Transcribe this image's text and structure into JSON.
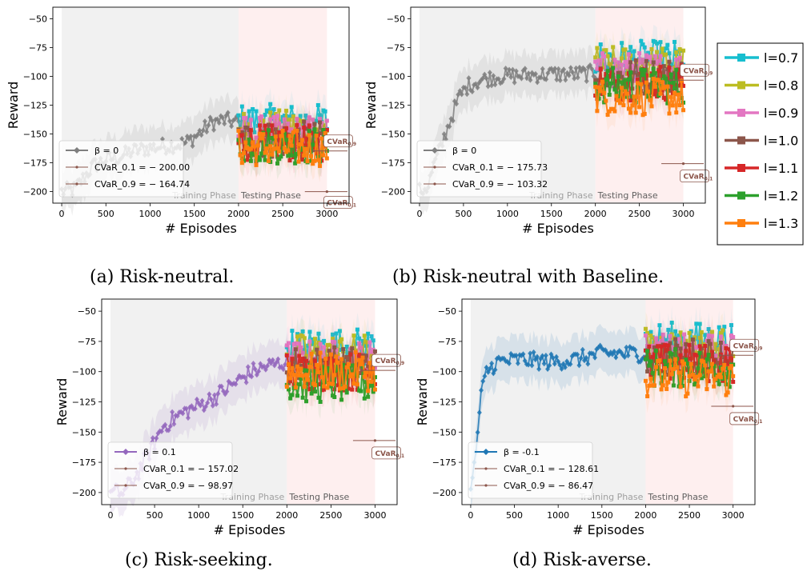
{
  "captions": {
    "a": "(a) Risk-neutral.",
    "b": "(b) Risk-neutral with Baseline.",
    "c": "(c) Risk-seeking.",
    "d": "(d) Risk-averse."
  },
  "legend": {
    "entries": [
      {
        "label": "l=0.7",
        "color": "#17becf"
      },
      {
        "label": "l=0.8",
        "color": "#bcbd22"
      },
      {
        "label": "l=0.9",
        "color": "#e377c2"
      },
      {
        "label": "l=1.0",
        "color": "#8c564b"
      },
      {
        "label": "l=1.1",
        "color": "#d62728"
      },
      {
        "label": "l=1.2",
        "color": "#2ca02c"
      },
      {
        "label": "l=1.3",
        "color": "#ff7f0e"
      }
    ]
  },
  "chart_data": [
    {
      "type": "line",
      "panel": "a",
      "xlabel": "# Episodes",
      "ylabel": "Reward",
      "xlim": [
        -100,
        3250
      ],
      "ylim": [
        -210,
        -40
      ],
      "xticks": [
        0,
        500,
        1000,
        1500,
        2000,
        2500,
        3000
      ],
      "yticks": [
        -50,
        -75,
        -100,
        -125,
        -150,
        -175,
        -200
      ],
      "train_color": "#7f7f7f",
      "phase_labels": [
        "Training Phase",
        "Testing Phase"
      ],
      "legend_labels": [
        "β = 0",
        "CVaR_0.1 = − 200.00",
        "CVaR_0.9 = − 164.74"
      ],
      "legend_position": "lower-left",
      "train_anchors": [
        [
          0,
          -200
        ],
        [
          150,
          -198
        ],
        [
          250,
          -188
        ],
        [
          350,
          -178
        ],
        [
          500,
          -172
        ],
        [
          650,
          -170
        ],
        [
          800,
          -165
        ],
        [
          1000,
          -162
        ],
        [
          1200,
          -160
        ],
        [
          1400,
          -158
        ],
        [
          1550,
          -150
        ],
        [
          1700,
          -140
        ],
        [
          1850,
          -138
        ],
        [
          2000,
          -140
        ]
      ],
      "test_means": {
        "l=0.7": -140,
        "l=0.8": -145,
        "l=0.9": -150,
        "l=1.0": -155,
        "l=1.1": -158,
        "l=1.2": -160,
        "l=1.3": -162
      },
      "cvar": {
        "cvar_0_9": -164.74,
        "cvar_0_1": -200.0
      },
      "cvar_tags": [
        "CVaR0.9",
        "CVaR0.1"
      ]
    },
    {
      "type": "line",
      "panel": "b",
      "xlabel": "# Episodes",
      "ylabel": "Reward",
      "xlim": [
        -100,
        3250
      ],
      "ylim": [
        -210,
        -40
      ],
      "xticks": [
        0,
        500,
        1000,
        1500,
        2000,
        2500,
        3000
      ],
      "yticks": [
        -50,
        -75,
        -100,
        -125,
        -150,
        -175,
        -200
      ],
      "train_color": "#7f7f7f",
      "phase_labels": [
        "Training Phase",
        "Testing Phase"
      ],
      "legend_labels": [
        "β = 0",
        "CVaR_0.1 = − 175.73",
        "CVaR_0.9 = − 103.32"
      ],
      "legend_position": "lower-left",
      "train_anchors": [
        [
          0,
          -200
        ],
        [
          100,
          -195
        ],
        [
          150,
          -180
        ],
        [
          250,
          -160
        ],
        [
          350,
          -138
        ],
        [
          450,
          -118
        ],
        [
          550,
          -108
        ],
        [
          700,
          -103
        ],
        [
          900,
          -100
        ],
        [
          1200,
          -99
        ],
        [
          1500,
          -98
        ],
        [
          1800,
          -98
        ],
        [
          2000,
          -97
        ]
      ],
      "test_means": {
        "l=0.7": -85,
        "l=0.8": -90,
        "l=0.9": -95,
        "l=1.0": -100,
        "l=1.1": -105,
        "l=1.2": -108,
        "l=1.3": -118
      },
      "cvar": {
        "cvar_0_9": -103.32,
        "cvar_0_1": -175.73
      },
      "cvar_tags": [
        "CVaR0.9",
        "CVaR0.1"
      ]
    },
    {
      "type": "line",
      "panel": "c",
      "xlabel": "# Episodes",
      "ylabel": "Reward",
      "xlim": [
        -100,
        3250
      ],
      "ylim": [
        -210,
        -40
      ],
      "xticks": [
        0,
        500,
        1000,
        1500,
        2000,
        2500,
        3000
      ],
      "yticks": [
        -50,
        -75,
        -100,
        -125,
        -150,
        -175,
        -200
      ],
      "train_color": "#9467bd",
      "phase_labels": [
        "Training Phase",
        "Testing Phase"
      ],
      "legend_labels": [
        "β = 0.1",
        "CVaR_0.1 = − 157.02",
        "CVaR_0.9 = − 98.97"
      ],
      "legend_position": "lower-left",
      "train_anchors": [
        [
          0,
          -200
        ],
        [
          150,
          -200
        ],
        [
          300,
          -185
        ],
        [
          450,
          -165
        ],
        [
          600,
          -145
        ],
        [
          800,
          -135
        ],
        [
          1000,
          -128
        ],
        [
          1200,
          -120
        ],
        [
          1400,
          -110
        ],
        [
          1600,
          -100
        ],
        [
          1800,
          -95
        ],
        [
          2000,
          -92
        ]
      ],
      "test_means": {
        "l=0.7": -80,
        "l=0.8": -85,
        "l=0.9": -90,
        "l=1.0": -95,
        "l=1.1": -100,
        "l=1.2": -110,
        "l=1.3": -100
      },
      "cvar": {
        "cvar_0_9": -98.97,
        "cvar_0_1": -157.02
      },
      "cvar_tags": [
        "CVaR0.9",
        "CVaR0.1"
      ]
    },
    {
      "type": "line",
      "panel": "d",
      "xlabel": "# Episodes",
      "ylabel": "Reward",
      "xlim": [
        -100,
        3250
      ],
      "ylim": [
        -210,
        -40
      ],
      "xticks": [
        0,
        500,
        1000,
        1500,
        2000,
        2500,
        3000
      ],
      "yticks": [
        -50,
        -75,
        -100,
        -125,
        -150,
        -175,
        -200
      ],
      "train_color": "#1f77b4",
      "phase_labels": [
        "Training Phase",
        "Testing Phase"
      ],
      "legend_labels": [
        "β = -0.1",
        "CVaR_0.1 = − 128.61",
        "CVaR_0.9 = − 86.47"
      ],
      "legend_position": "lower-left",
      "train_anchors": [
        [
          0,
          -200
        ],
        [
          40,
          -180
        ],
        [
          80,
          -150
        ],
        [
          120,
          -120
        ],
        [
          180,
          -100
        ],
        [
          300,
          -92
        ],
        [
          600,
          -90
        ],
        [
          900,
          -92
        ],
        [
          1200,
          -90
        ],
        [
          1500,
          -85
        ],
        [
          1800,
          -85
        ],
        [
          2000,
          -85
        ]
      ],
      "test_means": {
        "l=0.7": -75,
        "l=0.8": -80,
        "l=0.9": -85,
        "l=1.0": -88,
        "l=1.1": -93,
        "l=1.2": -97,
        "l=1.3": -105
      },
      "cvar": {
        "cvar_0_9": -86.47,
        "cvar_0_1": -128.61
      },
      "cvar_tags": [
        "CVaR0.9",
        "CVaR0.1"
      ]
    }
  ]
}
